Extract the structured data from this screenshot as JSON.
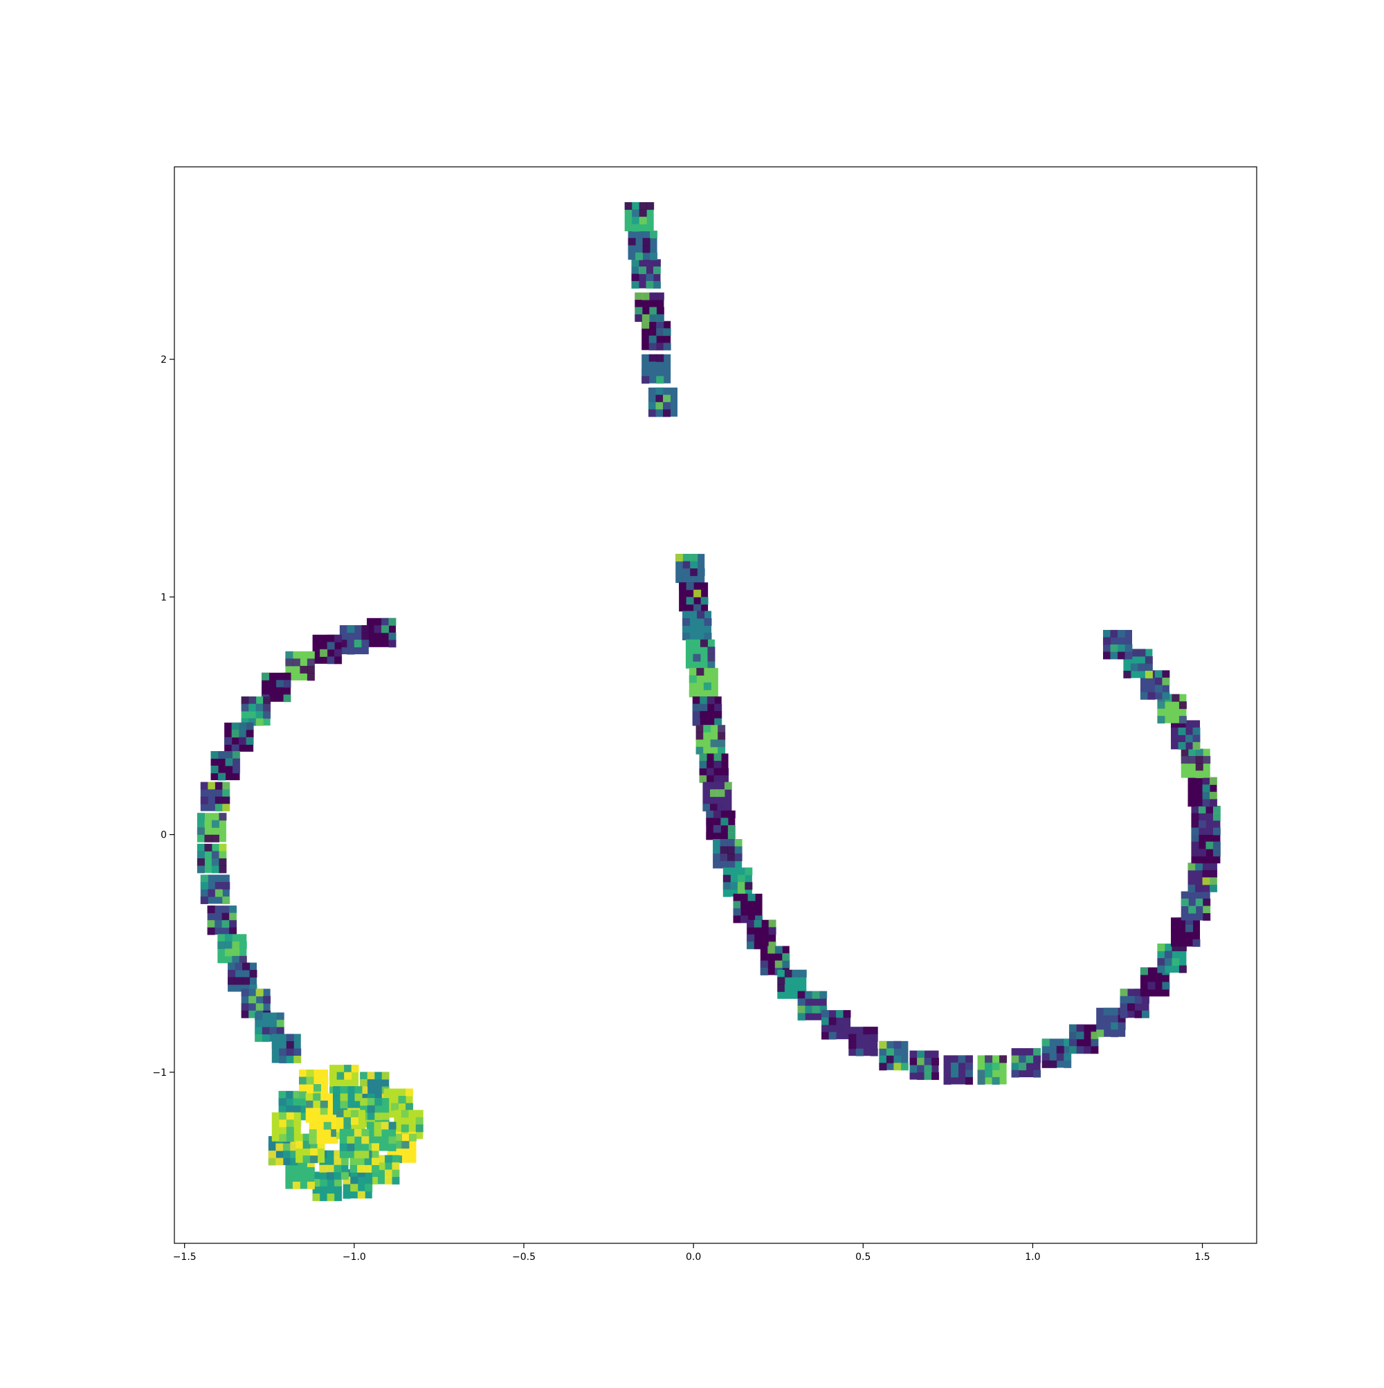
{
  "chart_data": {
    "type": "scatter",
    "title": "",
    "xlabel": "",
    "ylabel": "",
    "xlim": [
      -1.53,
      1.66
    ],
    "ylim": [
      -1.72,
      2.81
    ],
    "grid": false,
    "x_ticks": [
      {
        "value": -1.5,
        "label": "−1.5"
      },
      {
        "value": -1.0,
        "label": "−1.0"
      },
      {
        "value": -0.5,
        "label": "−0.5"
      },
      {
        "value": 0.0,
        "label": "0.0"
      },
      {
        "value": 0.5,
        "label": "0.5"
      },
      {
        "value": 1.0,
        "label": "1.0"
      },
      {
        "value": 1.5,
        "label": "1.5"
      }
    ],
    "y_ticks": [
      {
        "value": -1,
        "label": "−1"
      },
      {
        "value": 0,
        "label": "0"
      },
      {
        "value": 1,
        "label": "1"
      },
      {
        "value": 2,
        "label": "2"
      }
    ],
    "marker": "image-thumbnail",
    "colormap": "viridis",
    "clusters": [
      {
        "points": [
          [
            -0.09,
            1.82
          ],
          [
            -0.11,
            1.96
          ],
          [
            -0.11,
            2.1
          ],
          [
            -0.13,
            2.22
          ],
          [
            -0.14,
            2.36
          ],
          [
            -0.15,
            2.48
          ],
          [
            -0.16,
            2.6
          ]
        ]
      },
      {
        "points": [
          [
            -0.92,
            0.85
          ],
          [
            -1.0,
            0.82
          ],
          [
            -1.08,
            0.78
          ],
          [
            -1.16,
            0.71
          ],
          [
            -1.23,
            0.62
          ],
          [
            -1.29,
            0.52
          ],
          [
            -1.34,
            0.41
          ],
          [
            -1.38,
            0.29
          ],
          [
            -1.41,
            0.16
          ],
          [
            -1.42,
            0.03
          ],
          [
            -1.42,
            -0.1
          ],
          [
            -1.41,
            -0.23
          ],
          [
            -1.39,
            -0.36
          ],
          [
            -1.36,
            -0.48
          ],
          [
            -1.33,
            -0.6
          ],
          [
            -1.29,
            -0.71
          ],
          [
            -1.25,
            -0.81
          ],
          [
            -1.2,
            -0.9
          ]
        ]
      },
      {
        "points": [
          [
            -1.18,
            -1.14
          ],
          [
            -1.12,
            -1.05
          ],
          [
            -1.03,
            -1.03
          ],
          [
            -0.94,
            -1.06
          ],
          [
            -0.87,
            -1.13
          ],
          [
            -0.84,
            -1.22
          ],
          [
            -0.86,
            -1.32
          ],
          [
            -0.91,
            -1.41
          ],
          [
            -0.99,
            -1.47
          ],
          [
            -1.08,
            -1.48
          ],
          [
            -1.16,
            -1.43
          ],
          [
            -1.21,
            -1.33
          ],
          [
            -1.2,
            -1.23
          ],
          [
            -1.1,
            -1.15
          ],
          [
            -1.02,
            -1.12
          ],
          [
            -0.94,
            -1.17
          ],
          [
            -0.92,
            -1.27
          ],
          [
            -0.97,
            -1.36
          ],
          [
            -1.06,
            -1.39
          ],
          [
            -1.13,
            -1.32
          ],
          [
            -1.09,
            -1.24
          ],
          [
            -1.01,
            -1.22
          ],
          [
            -1.0,
            -1.3
          ]
        ]
      },
      {
        "points": [
          [
            -0.01,
            1.12
          ],
          [
            0.0,
            1.0
          ],
          [
            0.01,
            0.88
          ],
          [
            0.02,
            0.76
          ],
          [
            0.03,
            0.64
          ],
          [
            0.04,
            0.52
          ],
          [
            0.05,
            0.4
          ],
          [
            0.06,
            0.28
          ],
          [
            0.07,
            0.16
          ],
          [
            0.08,
            0.04
          ],
          [
            0.1,
            -0.08
          ],
          [
            0.13,
            -0.2
          ],
          [
            0.16,
            -0.31
          ],
          [
            0.2,
            -0.42
          ],
          [
            0.24,
            -0.53
          ],
          [
            0.29,
            -0.63
          ],
          [
            0.35,
            -0.72
          ],
          [
            0.42,
            -0.8
          ],
          [
            0.5,
            -0.87
          ],
          [
            0.59,
            -0.93
          ],
          [
            0.68,
            -0.97
          ],
          [
            0.78,
            -0.99
          ],
          [
            0.88,
            -0.99
          ],
          [
            0.98,
            -0.96
          ],
          [
            1.07,
            -0.92
          ],
          [
            1.15,
            -0.86
          ],
          [
            1.23,
            -0.79
          ],
          [
            1.3,
            -0.71
          ],
          [
            1.36,
            -0.62
          ],
          [
            1.41,
            -0.52
          ],
          [
            1.45,
            -0.41
          ],
          [
            1.48,
            -0.3
          ],
          [
            1.5,
            -0.18
          ],
          [
            1.51,
            -0.06
          ],
          [
            1.51,
            0.06
          ],
          [
            1.5,
            0.18
          ],
          [
            1.48,
            0.3
          ],
          [
            1.45,
            0.42
          ],
          [
            1.41,
            0.53
          ],
          [
            1.36,
            0.63
          ],
          [
            1.31,
            0.72
          ],
          [
            1.25,
            0.8
          ]
        ]
      }
    ]
  }
}
